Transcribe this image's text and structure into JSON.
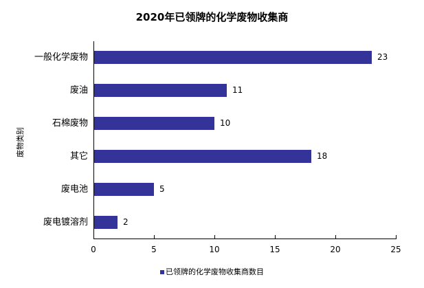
{
  "chart_data": {
    "type": "bar",
    "orientation": "horizontal",
    "title": "2020年已领牌的化学废物收集商",
    "xlabel": "",
    "ylabel": "废物类别",
    "categories": [
      "一般化学废物",
      "废油",
      "石棉废物",
      "其它",
      "废电池",
      "废电镀溶剂"
    ],
    "series": [
      {
        "name": "已领牌的化学废物收集商数目",
        "values": [
          23,
          11,
          10,
          18,
          5,
          2
        ],
        "color": "#333399"
      }
    ],
    "xlim": [
      0,
      25
    ],
    "xticks": [
      "0",
      "5",
      "10",
      "15",
      "20",
      "25"
    ],
    "grid": false,
    "legend_position": "bottom",
    "data_labels": true
  }
}
